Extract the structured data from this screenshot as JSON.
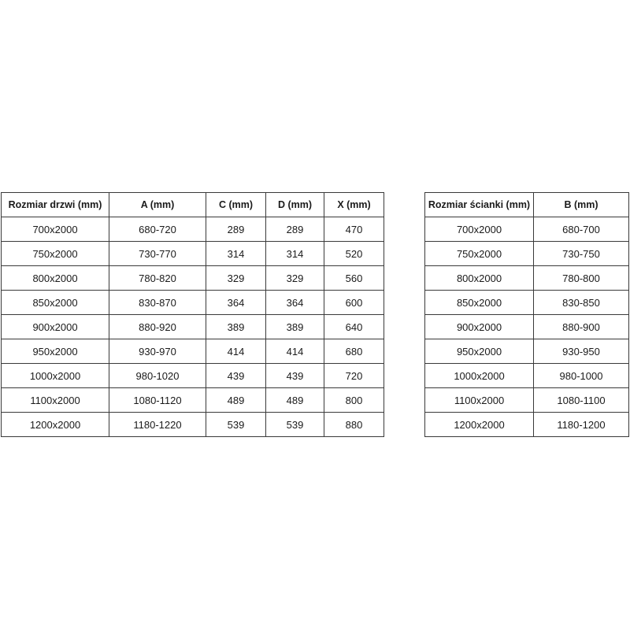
{
  "door_table": {
    "headers": [
      "Rozmiar drzwi (mm)",
      "A (mm)",
      "C (mm)",
      "D (mm)",
      "X (mm)"
    ],
    "rows": [
      [
        "700x2000",
        "680-720",
        "289",
        "289",
        "470"
      ],
      [
        "750x2000",
        "730-770",
        "314",
        "314",
        "520"
      ],
      [
        "800x2000",
        "780-820",
        "329",
        "329",
        "560"
      ],
      [
        "850x2000",
        "830-870",
        "364",
        "364",
        "600"
      ],
      [
        "900x2000",
        "880-920",
        "389",
        "389",
        "640"
      ],
      [
        "950x2000",
        "930-970",
        "414",
        "414",
        "680"
      ],
      [
        "1000x2000",
        "980-1020",
        "439",
        "439",
        "720"
      ],
      [
        "1100x2000",
        "1080-1120",
        "489",
        "489",
        "800"
      ],
      [
        "1200x2000",
        "1180-1220",
        "539",
        "539",
        "880"
      ]
    ]
  },
  "wall_table": {
    "headers": [
      "Rozmiar ścianki (mm)",
      "B (mm)"
    ],
    "rows": [
      [
        "700x2000",
        "680-700"
      ],
      [
        "750x2000",
        "730-750"
      ],
      [
        "800x2000",
        "780-800"
      ],
      [
        "850x2000",
        "830-850"
      ],
      [
        "900x2000",
        "880-900"
      ],
      [
        "950x2000",
        "930-950"
      ],
      [
        "1000x2000",
        "980-1000"
      ],
      [
        "1100x2000",
        "1080-1100"
      ],
      [
        "1200x2000",
        "1180-1200"
      ]
    ]
  }
}
